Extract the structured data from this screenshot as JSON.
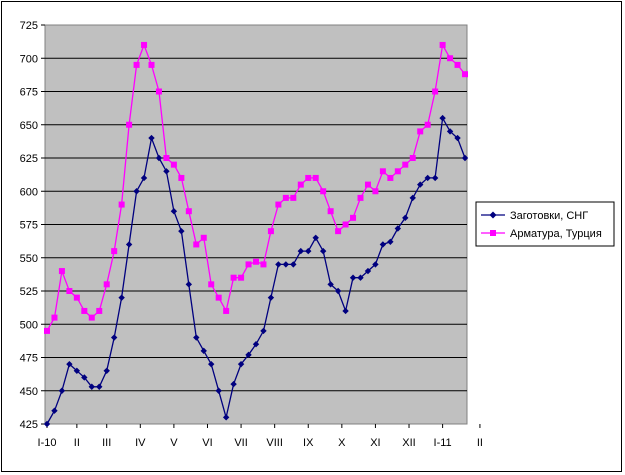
{
  "chart_data": {
    "type": "line",
    "title": "",
    "xlabel": "",
    "ylabel": "",
    "ylim": [
      425,
      725
    ],
    "yticks": [
      425,
      450,
      475,
      500,
      525,
      550,
      575,
      600,
      625,
      650,
      675,
      700,
      725
    ],
    "x_tick_labels": [
      "I-10",
      "II",
      "III",
      "IV",
      "V",
      "VI",
      "VII",
      "VIII",
      "IX",
      "X",
      "XI",
      "XII",
      "I-11",
      "II"
    ],
    "x_tick_positions": [
      0,
      4,
      8,
      12.5,
      17,
      21.5,
      26,
      30.5,
      35,
      39.5,
      44,
      48.5,
      53,
      58
    ],
    "grid": true,
    "legend_position": "right",
    "series": [
      {
        "name": "Заготовки, СНГ",
        "color": "#00007f",
        "marker": "diamond",
        "values": [
          425,
          435,
          450,
          470,
          465,
          460,
          453,
          453,
          465,
          490,
          520,
          560,
          600,
          610,
          640,
          625,
          615,
          585,
          570,
          530,
          490,
          480,
          470,
          450,
          430,
          455,
          470,
          477,
          485,
          495,
          520,
          545,
          545,
          545,
          555,
          555,
          565,
          555,
          530,
          525,
          510,
          535,
          535,
          540,
          545,
          560,
          562,
          572,
          580,
          595,
          605,
          610,
          610,
          655,
          645,
          640,
          625
        ]
      },
      {
        "name": "Арматура, Турция",
        "color": "#ff00ff",
        "marker": "square",
        "values": [
          495,
          505,
          540,
          525,
          520,
          510,
          505,
          510,
          530,
          555,
          590,
          650,
          695,
          710,
          695,
          675,
          625,
          620,
          610,
          585,
          560,
          565,
          530,
          520,
          510,
          535,
          535,
          545,
          547,
          545,
          570,
          590,
          595,
          595,
          605,
          610,
          610,
          600,
          585,
          570,
          575,
          580,
          595,
          605,
          600,
          615,
          610,
          615,
          620,
          625,
          645,
          650,
          675,
          710,
          700,
          695,
          688
        ]
      }
    ]
  }
}
